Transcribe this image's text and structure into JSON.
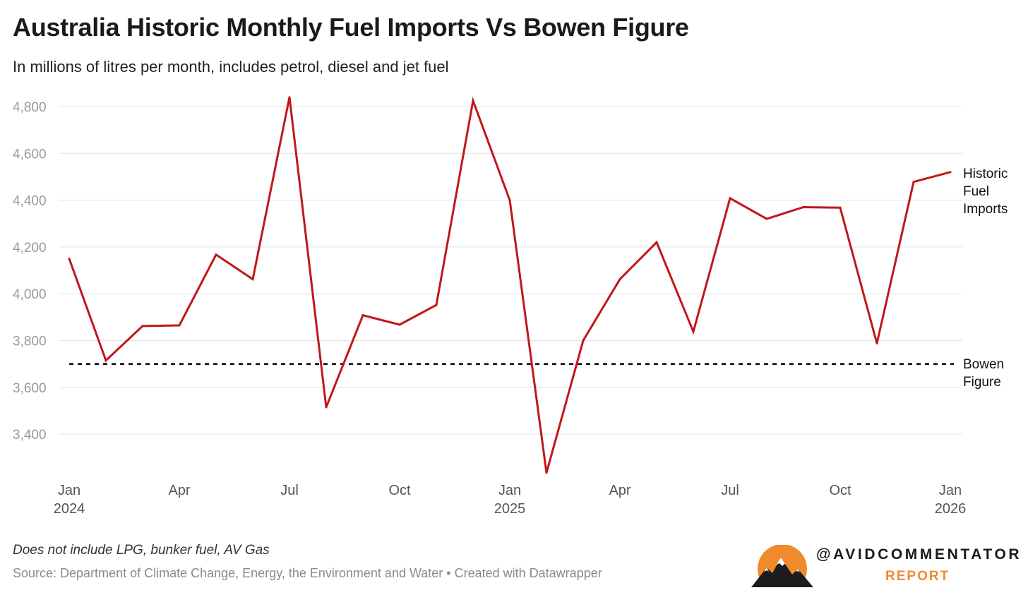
{
  "title": "Australia Historic Monthly Fuel Imports Vs Bowen Figure",
  "subtitle": "In millions of litres per month, includes petrol, diesel and jet fuel",
  "note": "Does not include LPG, bunker fuel, AV Gas",
  "source": "Source: Department of Climate Change, Energy, the Environment and Water • Created with Datawrapper",
  "brand": {
    "handle": "@AVIDCOMMENTATOR",
    "subtitle": "REPORT"
  },
  "colors": {
    "line": "#c0171b",
    "reference": "#111111",
    "grid": "#e3e3e3",
    "sun": "#f08a2c"
  },
  "chart_data": {
    "type": "line",
    "title": "Australia Historic Monthly Fuel Imports Vs Bowen Figure",
    "ylabel": "In millions of litres per month",
    "ylim": [
      3230,
      4860
    ],
    "yticks": [
      3400,
      3600,
      3800,
      4000,
      4200,
      4400,
      4600,
      4800
    ],
    "ytick_labels": [
      "3,400",
      "3,600",
      "3,800",
      "4,000",
      "4,200",
      "4,400",
      "4,600",
      "4,800"
    ],
    "x": [
      "2024-01",
      "2024-02",
      "2024-03",
      "2024-04",
      "2024-05",
      "2024-06",
      "2024-07",
      "2024-08",
      "2024-09",
      "2024-10",
      "2024-11",
      "2024-12",
      "2025-01",
      "2025-02",
      "2025-03",
      "2025-04",
      "2025-05",
      "2025-06",
      "2025-07",
      "2025-08",
      "2025-09",
      "2025-10",
      "2025-11",
      "2025-12",
      "2026-01"
    ],
    "xticks": [
      {
        "index": 0,
        "month": "Jan",
        "year": "2024"
      },
      {
        "index": 3,
        "month": "Apr",
        "year": ""
      },
      {
        "index": 6,
        "month": "Jul",
        "year": ""
      },
      {
        "index": 9,
        "month": "Oct",
        "year": ""
      },
      {
        "index": 12,
        "month": "Jan",
        "year": "2025"
      },
      {
        "index": 15,
        "month": "Apr",
        "year": ""
      },
      {
        "index": 18,
        "month": "Jul",
        "year": ""
      },
      {
        "index": 21,
        "month": "Oct",
        "year": ""
      },
      {
        "index": 24,
        "month": "Jan",
        "year": "2026"
      }
    ],
    "series": [
      {
        "name": "Historic Fuel Imports",
        "label_lines": [
          "Historic",
          "Fuel",
          "Imports"
        ],
        "values": [
          4150,
          3715,
          3862,
          3865,
          4167,
          4062,
          4840,
          3515,
          3908,
          3868,
          3952,
          4825,
          4400,
          3235,
          3800,
          4062,
          4220,
          3838,
          4408,
          4320,
          4370,
          4368,
          3788,
          4478,
          4520
        ]
      }
    ],
    "reference_line": {
      "name": "Bowen Figure",
      "label_lines": [
        "Bowen",
        "Figure"
      ],
      "value": 3700
    },
    "legend": "direct labels at right end of lines",
    "grid": true
  }
}
